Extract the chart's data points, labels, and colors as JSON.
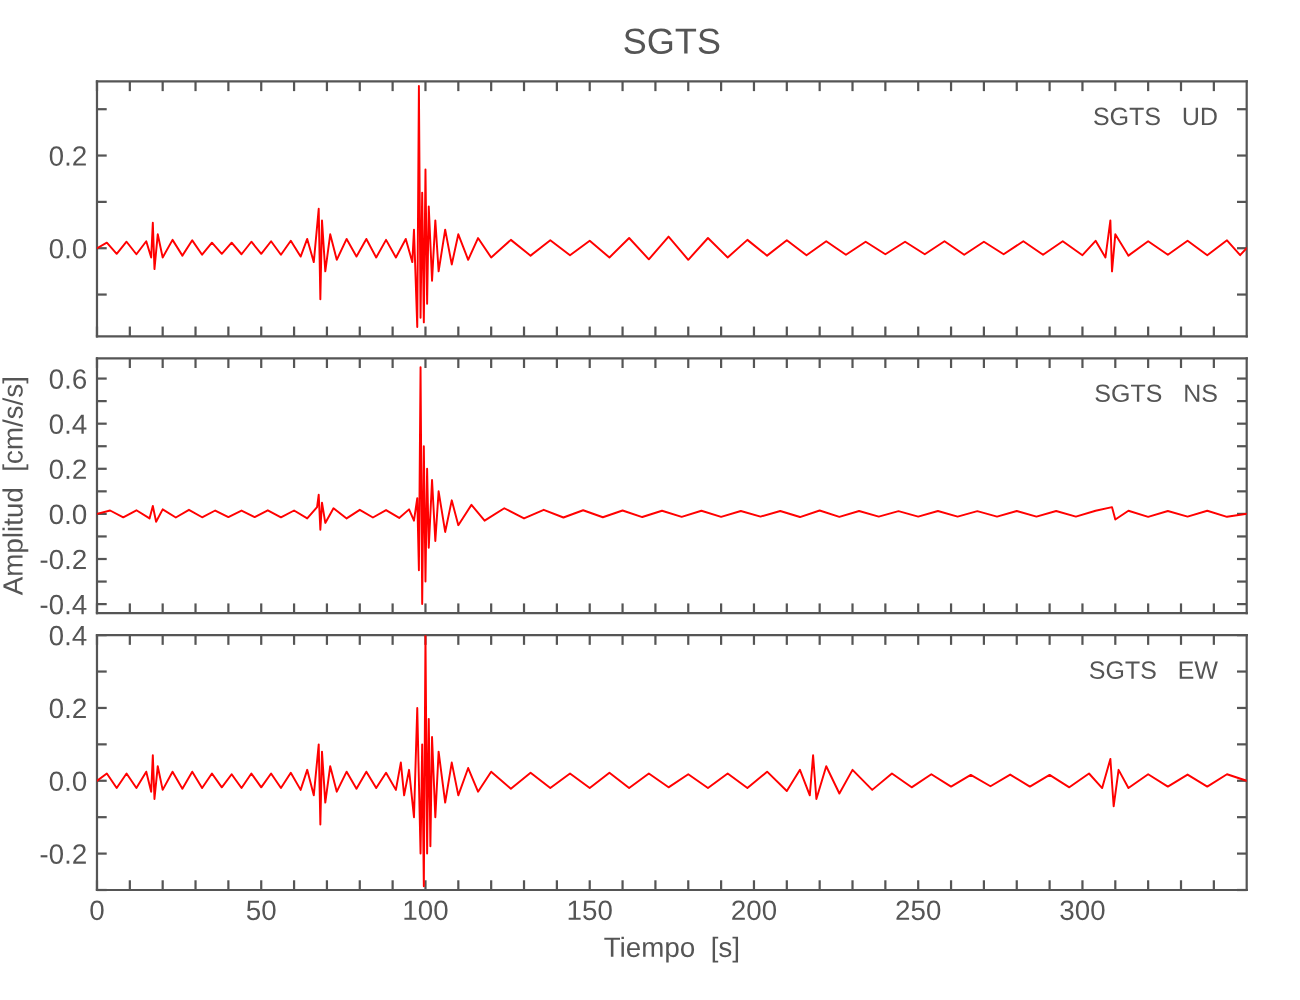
{
  "chart_data": [
    {
      "type": "line",
      "title": "SGTS",
      "annotations": [
        "SGTS   UD"
      ],
      "tick_labels": "y",
      "grid": false,
      "xlim": [
        0,
        350
      ],
      "xticks": [
        0,
        {
          "value": 10,
          "label": null
        },
        {
          "value": 20,
          "label": null
        },
        {
          "value": 30,
          "label": null
        },
        {
          "value": 40,
          "label": null
        },
        50,
        {
          "value": 60,
          "label": null
        },
        {
          "value": 70,
          "label": null
        },
        {
          "value": 80,
          "label": null
        },
        {
          "value": 90,
          "label": null
        },
        100,
        {
          "value": 110,
          "label": null
        },
        {
          "value": 120,
          "label": null
        },
        {
          "value": 130,
          "label": null
        },
        {
          "value": 140,
          "label": null
        },
        150,
        {
          "value": 160,
          "label": null
        },
        {
          "value": 170,
          "label": null
        },
        {
          "value": 180,
          "label": null
        },
        {
          "value": 190,
          "label": null
        },
        200,
        {
          "value": 210,
          "label": null
        },
        {
          "value": 220,
          "label": null
        },
        {
          "value": 230,
          "label": null
        },
        {
          "value": 240,
          "label": null
        },
        250,
        {
          "value": 260,
          "label": null
        },
        {
          "value": 270,
          "label": null
        },
        {
          "value": 280,
          "label": null
        },
        {
          "value": 290,
          "label": null
        },
        300,
        {
          "value": 310,
          "label": null
        },
        {
          "value": 320,
          "label": null
        },
        {
          "value": 330,
          "label": null
        },
        {
          "value": 340,
          "label": null
        }
      ],
      "ylim": [
        -0.19,
        0.36
      ],
      "yticks": [
        {
          "value": -0.1,
          "label": null
        },
        {
          "value": 0.0,
          "label": "0.0"
        },
        {
          "value": 0.1,
          "label": null
        },
        {
          "value": 0.2,
          "label": "0.2"
        },
        {
          "value": 0.3,
          "label": null
        }
      ],
      "series": [
        {
          "color": "#ff0000",
          "x": [
            0,
            3,
            6,
            9,
            12,
            15,
            16.5,
            17,
            17.5,
            18.5,
            20,
            23,
            26,
            29,
            32,
            35,
            38,
            41,
            44,
            47,
            50,
            53,
            56,
            59,
            62,
            64,
            66,
            67.5,
            68,
            68.5,
            69.5,
            71,
            73,
            76,
            79,
            82,
            85,
            88,
            91,
            94,
            96,
            96.5,
            97.5,
            98,
            98.5,
            99,
            99.5,
            100,
            100.5,
            101,
            102,
            103,
            104,
            106,
            108,
            110,
            113,
            116,
            120,
            126,
            132,
            138,
            144,
            150,
            156,
            162,
            168,
            174,
            180,
            186,
            192,
            198,
            204,
            210,
            216,
            222,
            228,
            234,
            240,
            246,
            252,
            258,
            264,
            270,
            276,
            282,
            288,
            294,
            300,
            304,
            307,
            308.5,
            309,
            310,
            314,
            320,
            326,
            332,
            338,
            344,
            348,
            350
          ],
          "values": [
            0,
            0.012,
            -0.012,
            0.014,
            -0.013,
            0.015,
            -0.02,
            0.055,
            -0.045,
            0.03,
            -0.02,
            0.018,
            -0.016,
            0.017,
            -0.014,
            0.012,
            -0.012,
            0.012,
            -0.013,
            0.014,
            -0.012,
            0.015,
            -0.014,
            0.016,
            -0.018,
            0.02,
            -0.03,
            0.085,
            -0.11,
            0.06,
            -0.05,
            0.03,
            -0.025,
            0.02,
            -0.018,
            0.02,
            -0.02,
            0.018,
            -0.02,
            0.02,
            -0.03,
            0.04,
            -0.17,
            0.35,
            -0.15,
            0.12,
            -0.16,
            0.17,
            -0.12,
            0.09,
            -0.07,
            0.06,
            -0.05,
            0.04,
            -0.035,
            0.03,
            -0.025,
            0.022,
            -0.02,
            0.018,
            -0.016,
            0.017,
            -0.015,
            0.016,
            -0.02,
            0.022,
            -0.024,
            0.025,
            -0.025,
            0.022,
            -0.02,
            0.018,
            -0.016,
            0.017,
            -0.015,
            0.015,
            -0.014,
            0.014,
            -0.013,
            0.014,
            -0.013,
            0.015,
            -0.014,
            0.014,
            -0.013,
            0.015,
            -0.014,
            0.015,
            -0.015,
            0.016,
            -0.02,
            0.06,
            -0.05,
            0.03,
            -0.016,
            0.015,
            -0.014,
            0.016,
            -0.015,
            0.017,
            -0.015,
            0
          ]
        }
      ]
    },
    {
      "type": "line",
      "ylabel": "Amplitud  [cm/s/s]",
      "annotations": [
        "SGTS   NS"
      ],
      "tick_labels": "y",
      "grid": false,
      "xlim": [
        0,
        350
      ],
      "xticks": [
        0,
        {
          "value": 10,
          "label": null
        },
        {
          "value": 20,
          "label": null
        },
        {
          "value": 30,
          "label": null
        },
        {
          "value": 40,
          "label": null
        },
        50,
        {
          "value": 60,
          "label": null
        },
        {
          "value": 70,
          "label": null
        },
        {
          "value": 80,
          "label": null
        },
        {
          "value": 90,
          "label": null
        },
        100,
        {
          "value": 110,
          "label": null
        },
        {
          "value": 120,
          "label": null
        },
        {
          "value": 130,
          "label": null
        },
        {
          "value": 140,
          "label": null
        },
        150,
        {
          "value": 160,
          "label": null
        },
        {
          "value": 170,
          "label": null
        },
        {
          "value": 180,
          "label": null
        },
        {
          "value": 190,
          "label": null
        },
        200,
        {
          "value": 210,
          "label": null
        },
        {
          "value": 220,
          "label": null
        },
        {
          "value": 230,
          "label": null
        },
        {
          "value": 240,
          "label": null
        },
        250,
        {
          "value": 260,
          "label": null
        },
        {
          "value": 270,
          "label": null
        },
        {
          "value": 280,
          "label": null
        },
        {
          "value": 290,
          "label": null
        },
        300,
        {
          "value": 310,
          "label": null
        },
        {
          "value": 320,
          "label": null
        },
        {
          "value": 330,
          "label": null
        },
        {
          "value": 340,
          "label": null
        }
      ],
      "ylim": [
        -0.44,
        0.69
      ],
      "yticks": [
        {
          "value": -0.4,
          "label": "-0.4"
        },
        {
          "value": -0.3,
          "label": null
        },
        {
          "value": -0.2,
          "label": "-0.2"
        },
        {
          "value": -0.1,
          "label": null
        },
        {
          "value": 0.0,
          "label": "0.0"
        },
        {
          "value": 0.1,
          "label": null
        },
        {
          "value": 0.2,
          "label": "0.2"
        },
        {
          "value": 0.3,
          "label": null
        },
        {
          "value": 0.4,
          "label": "0.4"
        },
        {
          "value": 0.5,
          "label": null
        },
        {
          "value": 0.6,
          "label": "0.6"
        }
      ],
      "series": [
        {
          "color": "#ff0000",
          "x": [
            0,
            4,
            8,
            12,
            16,
            17,
            18,
            20,
            24,
            28,
            32,
            36,
            40,
            44,
            48,
            52,
            56,
            60,
            64,
            67,
            67.5,
            68,
            68.5,
            69.5,
            72,
            76,
            80,
            84,
            88,
            92,
            95,
            96.5,
            97.5,
            98,
            98.5,
            99,
            99.5,
            100,
            100.5,
            101,
            102,
            103,
            104,
            106,
            108,
            110,
            114,
            118,
            124,
            130,
            136,
            142,
            148,
            154,
            160,
            166,
            172,
            178,
            184,
            190,
            196,
            202,
            208,
            214,
            220,
            226,
            232,
            238,
            244,
            250,
            256,
            262,
            268,
            274,
            280,
            286,
            292,
            298,
            304,
            309,
            310,
            314,
            320,
            326,
            332,
            338,
            344,
            350
          ],
          "values": [
            0,
            0.015,
            -0.015,
            0.016,
            -0.02,
            0.035,
            -0.035,
            0.02,
            -0.016,
            0.018,
            -0.015,
            0.015,
            -0.014,
            0.015,
            -0.014,
            0.016,
            -0.015,
            0.015,
            -0.02,
            0.03,
            0.085,
            -0.07,
            0.05,
            -0.04,
            0.025,
            -0.02,
            0.018,
            -0.016,
            0.017,
            -0.018,
            0.02,
            -0.03,
            0.07,
            -0.25,
            0.65,
            -0.4,
            0.3,
            -0.3,
            0.2,
            -0.15,
            0.15,
            -0.12,
            0.1,
            -0.08,
            0.06,
            -0.05,
            0.04,
            -0.03,
            0.025,
            -0.02,
            0.018,
            -0.016,
            0.016,
            -0.015,
            0.015,
            -0.014,
            0.014,
            -0.013,
            0.014,
            -0.013,
            0.013,
            -0.012,
            0.013,
            -0.014,
            0.015,
            -0.013,
            0.013,
            -0.012,
            0.012,
            -0.012,
            0.013,
            -0.012,
            0.012,
            -0.012,
            0.013,
            -0.012,
            0.013,
            -0.012,
            0.014,
            0.03,
            -0.025,
            0.014,
            -0.013,
            0.013,
            -0.012,
            0.014,
            -0.013,
            0
          ]
        }
      ]
    },
    {
      "type": "line",
      "xlabel": "Tiempo  [s]",
      "annotations": [
        "SGTS   EW"
      ],
      "grid": false,
      "xlim": [
        0,
        350
      ],
      "xticks": [
        0,
        {
          "value": 10,
          "label": null
        },
        {
          "value": 20,
          "label": null
        },
        {
          "value": 30,
          "label": null
        },
        {
          "value": 40,
          "label": null
        },
        50,
        {
          "value": 60,
          "label": null
        },
        {
          "value": 70,
          "label": null
        },
        {
          "value": 80,
          "label": null
        },
        {
          "value": 90,
          "label": null
        },
        100,
        {
          "value": 110,
          "label": null
        },
        {
          "value": 120,
          "label": null
        },
        {
          "value": 130,
          "label": null
        },
        {
          "value": 140,
          "label": null
        },
        150,
        {
          "value": 160,
          "label": null
        },
        {
          "value": 170,
          "label": null
        },
        {
          "value": 180,
          "label": null
        },
        {
          "value": 190,
          "label": null
        },
        200,
        {
          "value": 210,
          "label": null
        },
        {
          "value": 220,
          "label": null
        },
        {
          "value": 230,
          "label": null
        },
        {
          "value": 240,
          "label": null
        },
        250,
        {
          "value": 260,
          "label": null
        },
        {
          "value": 270,
          "label": null
        },
        {
          "value": 280,
          "label": null
        },
        {
          "value": 290,
          "label": null
        },
        300,
        {
          "value": 310,
          "label": null
        },
        {
          "value": 320,
          "label": null
        },
        {
          "value": 330,
          "label": null
        },
        {
          "value": 340,
          "label": null
        }
      ],
      "ylim": [
        -0.3,
        0.4
      ],
      "yticks": [
        {
          "value": -0.3,
          "label": null
        },
        {
          "value": -0.2,
          "label": "-0.2"
        },
        {
          "value": -0.1,
          "label": null
        },
        {
          "value": 0.0,
          "label": "0.0"
        },
        {
          "value": 0.1,
          "label": null
        },
        {
          "value": 0.2,
          "label": "0.2"
        },
        {
          "value": 0.3,
          "label": null
        },
        {
          "value": 0.4,
          "label": "0.4"
        }
      ],
      "series": [
        {
          "color": "#ff0000",
          "x": [
            0,
            3,
            6,
            9,
            12,
            15,
            16.5,
            17,
            17.5,
            18.5,
            20,
            23,
            26,
            29,
            32,
            35,
            38,
            41,
            44,
            47,
            50,
            53,
            56,
            59,
            62,
            64,
            66,
            67.5,
            68,
            68.5,
            69.5,
            71,
            73,
            76,
            79,
            82,
            85,
            88,
            91,
            92.5,
            93.5,
            95,
            96.5,
            97.5,
            98.5,
            99,
            99.5,
            100,
            100.5,
            101,
            101.5,
            102,
            103,
            104,
            106,
            108,
            110,
            113,
            116,
            120,
            126,
            132,
            138,
            144,
            150,
            156,
            162,
            168,
            174,
            180,
            186,
            192,
            198,
            204,
            210,
            214,
            217,
            218,
            219,
            222,
            226,
            230,
            236,
            242,
            248,
            254,
            260,
            266,
            272,
            278,
            284,
            290,
            296,
            302,
            306,
            308.5,
            309.5,
            311,
            314,
            320,
            326,
            332,
            338,
            344,
            350
          ],
          "values": [
            0,
            0.02,
            -0.02,
            0.02,
            -0.02,
            0.025,
            -0.03,
            0.07,
            -0.05,
            0.04,
            -0.025,
            0.025,
            -0.022,
            0.025,
            -0.02,
            0.02,
            -0.018,
            0.018,
            -0.02,
            0.02,
            -0.018,
            0.02,
            -0.02,
            0.022,
            -0.025,
            0.03,
            -0.04,
            0.1,
            -0.12,
            0.08,
            -0.06,
            0.04,
            -0.03,
            0.025,
            -0.022,
            0.025,
            -0.02,
            0.022,
            -0.025,
            0.05,
            -0.04,
            0.03,
            -0.1,
            0.2,
            -0.2,
            0.1,
            -0.29,
            0.4,
            -0.2,
            0.17,
            -0.18,
            0.12,
            -0.1,
            0.08,
            -0.06,
            0.05,
            -0.04,
            0.035,
            -0.03,
            0.025,
            -0.022,
            0.022,
            -0.02,
            0.02,
            -0.02,
            0.022,
            -0.02,
            0.02,
            -0.018,
            0.018,
            -0.02,
            0.02,
            -0.02,
            0.025,
            -0.028,
            0.03,
            -0.04,
            0.07,
            -0.05,
            0.04,
            -0.035,
            0.03,
            -0.025,
            0.02,
            -0.018,
            0.018,
            -0.016,
            0.016,
            -0.015,
            0.017,
            -0.016,
            0.016,
            -0.018,
            0.02,
            -0.02,
            0.06,
            -0.07,
            0.03,
            -0.02,
            0.018,
            -0.016,
            0.017,
            -0.016,
            0.018,
            0
          ]
        }
      ]
    }
  ]
}
